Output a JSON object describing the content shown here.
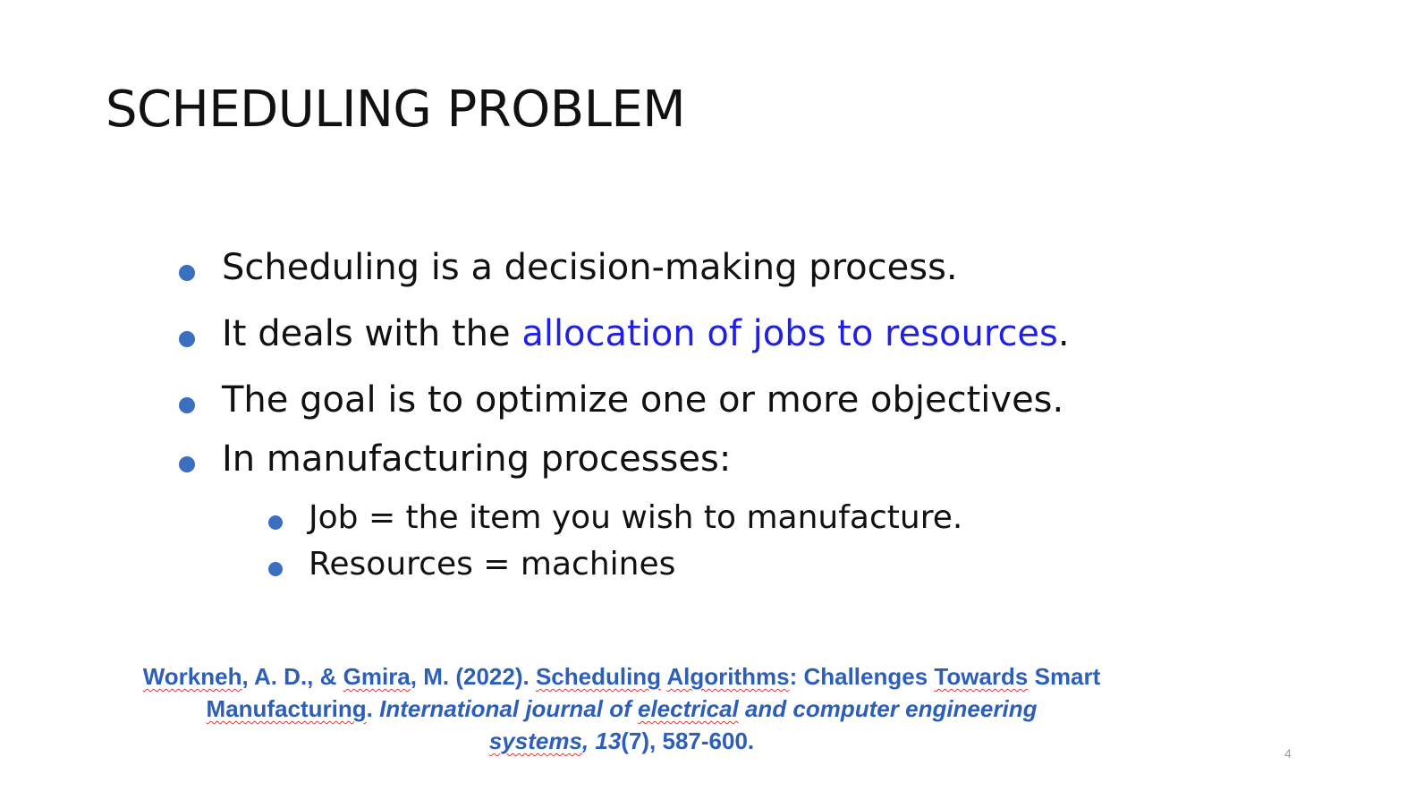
{
  "slide": {
    "title": "SCHEDULING PROBLEM",
    "page_number": "4",
    "bullet_color": "#3c6fbf",
    "highlight_color": "#1f1fe6"
  },
  "bullets": [
    {
      "text": "Scheduling is a decision-making process."
    },
    {
      "prefix": "It deals with the ",
      "highlight": "allocation of jobs to resources",
      "suffix": "."
    },
    {
      "text": "The goal is to optimize one or more objectives."
    },
    {
      "text": "In manufacturing processes:"
    }
  ],
  "sub_bullets": [
    {
      "text": "Job = the item you wish to manufacture."
    },
    {
      "text": "Resources = machines"
    }
  ],
  "reference": {
    "authors_a": "Workneh",
    "authors_b": ", A. D., & ",
    "authors_c": "Gmira",
    "authors_d": ", M. (2022). ",
    "title_a": "Scheduling",
    "title_b": " ",
    "title_c": "Algorithms",
    "title_d": ": Challenges ",
    "title_e": "Towards",
    "title_f": " Smart",
    "title_g": "Manufacturing",
    "title_h": ". ",
    "journal_a": "International journal of ",
    "journal_b": "electrical",
    "journal_c": " and computer engineering",
    "journal_d": "systems",
    "journal_e": ", 13",
    "issue": "(7), 587-600."
  }
}
